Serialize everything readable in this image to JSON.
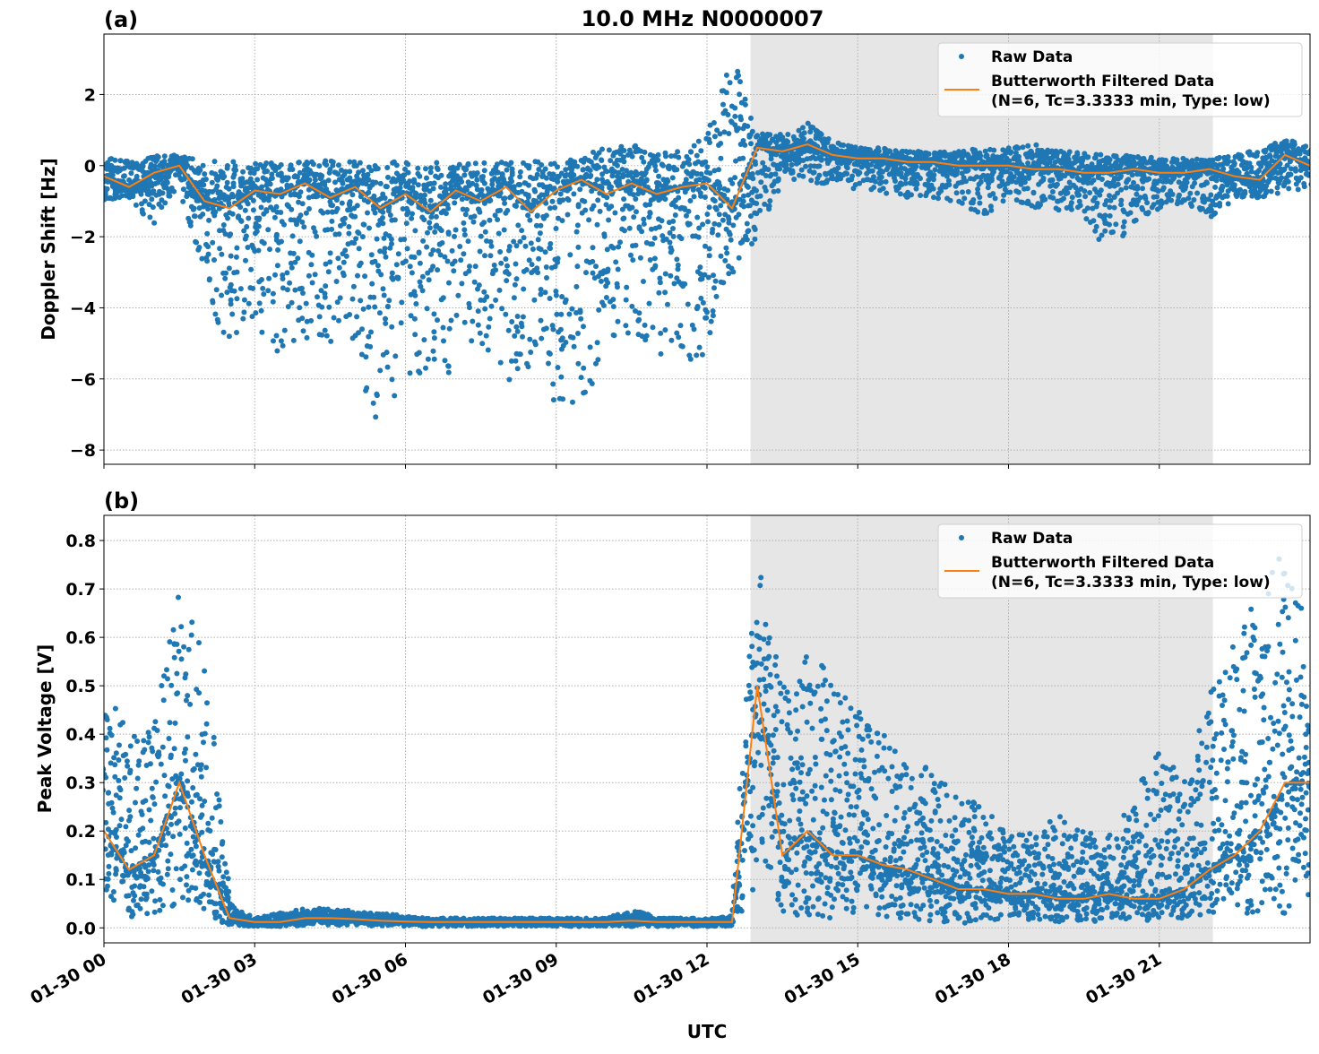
{
  "title": "10.0 MHz N0000007",
  "xlabel": "UTC",
  "x_tick_labels": [
    "01-30 00",
    "01-30 03",
    "01-30 06",
    "01-30 09",
    "01-30 12",
    "01-30 15",
    "01-30 18",
    "01-30 21"
  ],
  "x_tick_times": [
    "00:00",
    "03:00",
    "06:00",
    "09:00",
    "12:00",
    "15:00",
    "18:00",
    "21:00"
  ],
  "x_range": [
    "00:00",
    "24:00"
  ],
  "colors": {
    "raw": "#1f77b4",
    "filtered": "#ff7f0e",
    "shaded": "#e6e6e6",
    "grid": "#b0b0b0"
  },
  "chart_data": [
    {
      "type": "scatter+line",
      "panel_label": "(a)",
      "ylabel": "Doppler Shift [Hz]",
      "ylim": [
        -8.4,
        3.7
      ],
      "y_ticks": [
        -8,
        -6,
        -4,
        -2,
        0,
        2
      ],
      "y_tick_labels": [
        "−8",
        "−6",
        "−4",
        "−2",
        "0",
        "2"
      ],
      "grid": true,
      "legend_position": "top-right",
      "shaded_interval": [
        "12:52",
        "22:04"
      ],
      "legend": {
        "raw": "Raw Data",
        "filtered_line1": "Butterworth Filtered Data",
        "filtered_line2": "(N=6, Tc=3.3333 min, Type: low)"
      },
      "x": [
        "00:00",
        "00:30",
        "01:00",
        "01:30",
        "02:00",
        "02:30",
        "03:00",
        "03:30",
        "04:00",
        "04:30",
        "05:00",
        "05:30",
        "06:00",
        "06:30",
        "07:00",
        "07:30",
        "08:00",
        "08:30",
        "09:00",
        "09:30",
        "10:00",
        "10:30",
        "11:00",
        "11:30",
        "12:00",
        "12:30",
        "13:00",
        "13:30",
        "14:00",
        "14:30",
        "15:00",
        "15:30",
        "16:00",
        "16:30",
        "17:00",
        "17:30",
        "18:00",
        "18:30",
        "19:00",
        "19:30",
        "20:00",
        "20:30",
        "21:00",
        "21:30",
        "22:00",
        "22:30",
        "23:00",
        "23:30",
        "24:00"
      ],
      "filtered": [
        -0.3,
        -0.6,
        -0.2,
        0.0,
        -1.0,
        -1.2,
        -0.7,
        -0.8,
        -0.5,
        -0.9,
        -0.6,
        -1.2,
        -0.8,
        -1.3,
        -0.7,
        -1.0,
        -0.6,
        -1.3,
        -0.7,
        -0.4,
        -0.8,
        -0.5,
        -0.8,
        -0.6,
        -0.5,
        -1.2,
        0.5,
        0.4,
        0.6,
        0.3,
        0.2,
        0.2,
        0.1,
        0.1,
        0.0,
        0.0,
        0.0,
        -0.1,
        -0.1,
        -0.2,
        -0.2,
        -0.1,
        -0.2,
        -0.2,
        -0.1,
        -0.3,
        -0.4,
        0.3,
        0.0
      ],
      "raw_upper": [
        0.2,
        0.2,
        0.3,
        0.3,
        0.1,
        0.2,
        0.1,
        0.1,
        0.1,
        0.2,
        0.1,
        0.1,
        0.1,
        0.1,
        0.1,
        0.1,
        0.1,
        0.1,
        0.2,
        0.2,
        0.6,
        0.6,
        0.3,
        0.5,
        1.0,
        3.1,
        0.9,
        0.9,
        1.2,
        0.7,
        0.5,
        0.5,
        0.4,
        0.4,
        0.4,
        0.5,
        0.5,
        0.6,
        0.4,
        0.4,
        0.3,
        0.3,
        0.2,
        0.2,
        0.2,
        0.3,
        0.5,
        0.8,
        0.5
      ],
      "raw_lower": [
        -1.0,
        -0.9,
        -1.7,
        -0.5,
        -3.3,
        -5.7,
        -4.5,
        -5.3,
        -5.0,
        -5.6,
        -5.2,
        -7.8,
        -5.9,
        -5.9,
        -5.8,
        -5.0,
        -6.2,
        -5.7,
        -6.8,
        -7.0,
        -5.0,
        -4.7,
        -5.2,
        -5.7,
        -5.3,
        -3.3,
        -2.0,
        -0.4,
        -0.5,
        -0.6,
        -0.7,
        -0.8,
        -0.9,
        -1.0,
        -1.0,
        -1.5,
        -0.9,
        -1.2,
        -1.3,
        -1.4,
        -2.6,
        -1.6,
        -1.3,
        -1.0,
        -1.6,
        -0.9,
        -0.9,
        -0.8,
        -0.6
      ]
    },
    {
      "type": "scatter+line",
      "panel_label": "(b)",
      "ylabel": "Peak Voltage [V]",
      "ylim": [
        -0.031,
        0.852
      ],
      "y_ticks": [
        0.0,
        0.1,
        0.2,
        0.3,
        0.4,
        0.5,
        0.6,
        0.7,
        0.8
      ],
      "y_tick_labels": [
        "0.0",
        "0.1",
        "0.2",
        "0.3",
        "0.4",
        "0.5",
        "0.6",
        "0.7",
        "0.8"
      ],
      "grid": true,
      "legend_position": "top-right",
      "shaded_interval": [
        "12:52",
        "22:04"
      ],
      "legend": {
        "raw": "Raw Data",
        "filtered_line1": "Butterworth Filtered Data",
        "filtered_line2": "(N=6, Tc=3.3333 min, Type: low)"
      },
      "x": [
        "00:00",
        "00:30",
        "01:00",
        "01:30",
        "02:00",
        "02:30",
        "03:00",
        "03:30",
        "04:00",
        "04:30",
        "05:00",
        "05:30",
        "06:00",
        "06:30",
        "07:00",
        "07:30",
        "08:00",
        "08:30",
        "09:00",
        "09:30",
        "10:00",
        "10:30",
        "11:00",
        "11:30",
        "12:00",
        "12:30",
        "13:00",
        "13:30",
        "14:00",
        "14:30",
        "15:00",
        "15:30",
        "16:00",
        "16:30",
        "17:00",
        "17:30",
        "18:00",
        "18:30",
        "19:00",
        "19:30",
        "20:00",
        "20:30",
        "21:00",
        "21:30",
        "22:00",
        "22:30",
        "23:00",
        "23:30",
        "24:00"
      ],
      "filtered": [
        0.2,
        0.12,
        0.15,
        0.3,
        0.15,
        0.02,
        0.012,
        0.012,
        0.02,
        0.02,
        0.018,
        0.015,
        0.013,
        0.012,
        0.012,
        0.012,
        0.012,
        0.012,
        0.012,
        0.012,
        0.012,
        0.015,
        0.012,
        0.012,
        0.012,
        0.012,
        0.5,
        0.15,
        0.2,
        0.15,
        0.15,
        0.13,
        0.12,
        0.1,
        0.08,
        0.08,
        0.07,
        0.07,
        0.06,
        0.06,
        0.07,
        0.06,
        0.06,
        0.08,
        0.12,
        0.15,
        0.2,
        0.3,
        0.3
      ],
      "raw_upper": [
        0.5,
        0.42,
        0.45,
        0.69,
        0.6,
        0.05,
        0.02,
        0.03,
        0.04,
        0.04,
        0.035,
        0.03,
        0.025,
        0.02,
        0.02,
        0.02,
        0.02,
        0.02,
        0.02,
        0.02,
        0.02,
        0.04,
        0.02,
        0.02,
        0.02,
        0.025,
        0.81,
        0.5,
        0.6,
        0.5,
        0.45,
        0.4,
        0.35,
        0.33,
        0.27,
        0.26,
        0.2,
        0.2,
        0.24,
        0.2,
        0.2,
        0.27,
        0.38,
        0.3,
        0.5,
        0.6,
        0.7,
        0.81,
        0.63
      ],
      "raw_lower": [
        0.07,
        0.02,
        0.03,
        0.05,
        0.03,
        0.005,
        0.003,
        0.003,
        0.005,
        0.005,
        0.005,
        0.004,
        0.003,
        0.003,
        0.003,
        0.003,
        0.003,
        0.003,
        0.003,
        0.003,
        0.003,
        0.003,
        0.003,
        0.003,
        0.003,
        0.003,
        0.08,
        0.03,
        0.02,
        0.02,
        0.02,
        0.02,
        0.02,
        0.01,
        0.01,
        0.01,
        0.01,
        0.01,
        0.01,
        0.01,
        0.01,
        0.01,
        0.02,
        0.02,
        0.03,
        0.03,
        0.03,
        0.03,
        0.05
      ]
    }
  ]
}
